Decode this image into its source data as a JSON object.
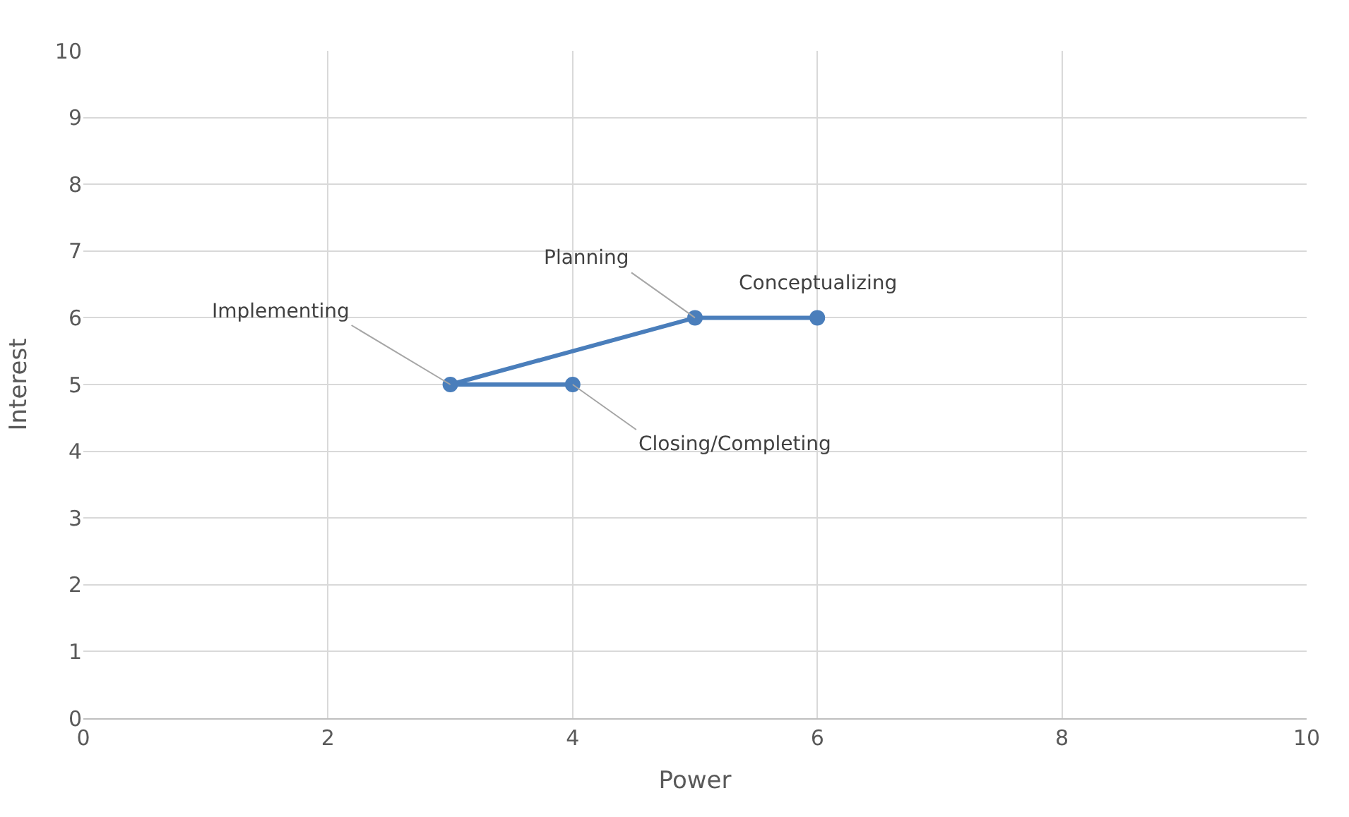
{
  "chart_data": {
    "type": "line",
    "xlabel": "Power",
    "ylabel": "Interest",
    "x": [
      6,
      5,
      3,
      4
    ],
    "series": [
      {
        "color": "#4a7ebb",
        "values": [
          6,
          6,
          5,
          5
        ]
      }
    ],
    "xlim": [
      0,
      10
    ],
    "xticks": [
      0,
      2,
      4,
      6,
      8,
      10
    ],
    "ylim": [
      0,
      10
    ],
    "yticks": [
      0,
      1,
      2,
      3,
      4,
      5,
      6,
      7,
      8,
      9,
      10
    ],
    "grid": true,
    "marker": "circle",
    "line_style": "solid",
    "annotations": [
      {
        "text": "Conceptualizing",
        "x": 6,
        "y": 6
      },
      {
        "text": "Planning",
        "x": 5,
        "y": 6
      },
      {
        "text": "Implementing",
        "x": 3,
        "y": 5
      },
      {
        "text": "Closing/Completing",
        "x": 4,
        "y": 5
      }
    ]
  }
}
